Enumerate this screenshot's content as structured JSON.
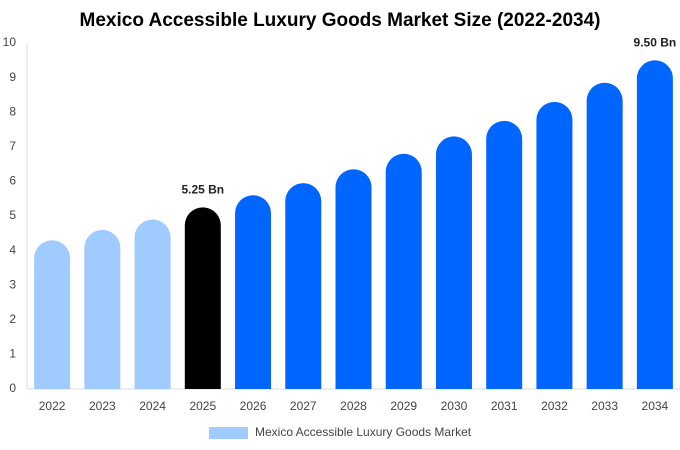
{
  "chart_data": {
    "type": "bar",
    "title": "Mexico Accessible Luxury Goods Market Size (2022-2034)",
    "categories": [
      "2022",
      "2023",
      "2024",
      "2025",
      "2026",
      "2027",
      "2028",
      "2029",
      "2030",
      "2031",
      "2032",
      "2033",
      "2034"
    ],
    "series": [
      {
        "name": "Mexico Accessible Luxury Goods Market",
        "color": "#a0cbff",
        "values": [
          4.3,
          4.6,
          4.9,
          5.25,
          5.6,
          5.95,
          6.35,
          6.8,
          7.3,
          7.75,
          8.3,
          8.85,
          9.5
        ],
        "value_labels": [
          null,
          null,
          null,
          "5.25 Bn",
          null,
          null,
          null,
          null,
          null,
          null,
          null,
          null,
          "9.50 Bn"
        ],
        "colors": [
          "#a0cbff",
          "#a0cbff",
          "#a0cbff",
          "#000000",
          "#0066ff",
          "#0066ff",
          "#0066ff",
          "#0066ff",
          "#0066ff",
          "#0066ff",
          "#0066ff",
          "#0066ff",
          "#0066ff"
        ]
      }
    ],
    "ylim": [
      0,
      10
    ],
    "yticks": [
      0,
      1,
      2,
      3,
      4,
      5,
      6,
      7,
      8,
      9,
      10
    ],
    "grid": false
  }
}
